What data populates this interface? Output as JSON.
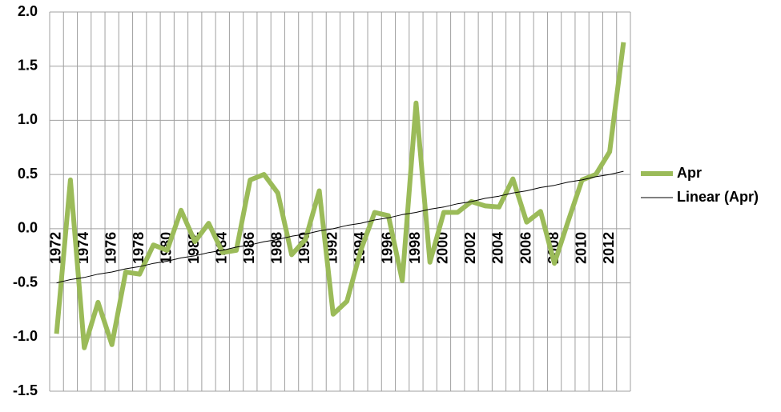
{
  "chart_data": {
    "type": "line",
    "categories": [
      "1972",
      null,
      "1974",
      null,
      "1976",
      null,
      "1978",
      null,
      "1980",
      null,
      "1982",
      null,
      "1984",
      null,
      "1986",
      null,
      "1988",
      null,
      "1990",
      null,
      "1992",
      null,
      "1994",
      null,
      "1996",
      null,
      "1998",
      null,
      "2000",
      null,
      "2002",
      null,
      "2004",
      null,
      "2006",
      null,
      "2008",
      null,
      "2010",
      null,
      "2012",
      null
    ],
    "series": [
      {
        "name": "Apr",
        "color": "#9bbb59",
        "values": [
          -0.97,
          0.45,
          -1.1,
          -0.68,
          -1.07,
          -0.4,
          -0.42,
          -0.15,
          -0.2,
          0.17,
          -0.12,
          0.05,
          -0.22,
          -0.2,
          0.45,
          0.5,
          0.33,
          -0.24,
          -0.1,
          0.35,
          -0.79,
          -0.67,
          -0.2,
          0.15,
          0.12,
          -0.48,
          1.16,
          -0.31,
          0.15,
          0.15,
          0.25,
          0.21,
          0.2,
          0.46,
          0.06,
          0.16,
          -0.32,
          0.07,
          0.45,
          0.5,
          0.71,
          1.72
        ]
      },
      {
        "name": "Linear (Apr)",
        "color": "#000000",
        "values": [
          -0.5,
          -0.47,
          -0.45,
          -0.42,
          -0.4,
          -0.37,
          -0.35,
          -0.32,
          -0.3,
          -0.27,
          -0.25,
          -0.22,
          -0.2,
          -0.17,
          -0.15,
          -0.12,
          -0.1,
          -0.07,
          -0.05,
          -0.02,
          0.0,
          0.03,
          0.05,
          0.08,
          0.1,
          0.13,
          0.15,
          0.18,
          0.2,
          0.23,
          0.25,
          0.28,
          0.3,
          0.33,
          0.35,
          0.38,
          0.4,
          0.43,
          0.45,
          0.48,
          0.5,
          0.53
        ]
      }
    ],
    "ylim": [
      -1.5,
      2.0
    ],
    "yticks": [
      {
        "value": -1.5,
        "label": "-1.5"
      },
      {
        "value": -1.0,
        "label": "-1.0"
      },
      -0.5,
      {
        "value": 0.0,
        "label": "0.0"
      },
      0.5,
      {
        "value": 1.0,
        "label": "1.0"
      },
      1.5,
      {
        "value": 2.0,
        "label": "2.0"
      }
    ],
    "grid": true,
    "legend": "right"
  }
}
